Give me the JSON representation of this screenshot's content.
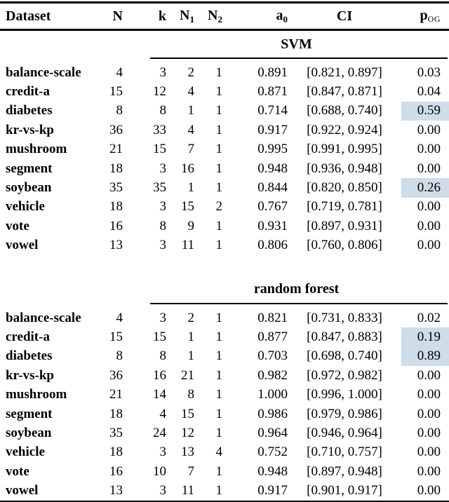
{
  "colors": {
    "highlight": "#cfdce9",
    "text": "#000000",
    "background": "#ffffff",
    "rule": "#000000"
  },
  "table": {
    "columns": [
      {
        "main": "Dataset",
        "sub": ""
      },
      {
        "main": "N",
        "sub": ""
      },
      {
        "main": "k",
        "sub": ""
      },
      {
        "main": "N",
        "sub": "1"
      },
      {
        "main": "N",
        "sub": "2"
      },
      {
        "main": "a",
        "sub": "0"
      },
      {
        "main": "CI",
        "sub": ""
      },
      {
        "main": "p",
        "sub": "OG"
      }
    ],
    "sections": [
      {
        "title": "SVM",
        "rows": [
          {
            "dataset": "balance-scale",
            "N": "4",
            "k": "3",
            "N1": "2",
            "N2": "1",
            "a0": "0.891",
            "CI": "[0.821, 0.897]",
            "pOG": "0.03",
            "highlight_pog": false
          },
          {
            "dataset": "credit-a",
            "N": "15",
            "k": "12",
            "N1": "4",
            "N2": "1",
            "a0": "0.871",
            "CI": "[0.847, 0.871]",
            "pOG": "0.04",
            "highlight_pog": false
          },
          {
            "dataset": "diabetes",
            "N": "8",
            "k": "8",
            "N1": "1",
            "N2": "1",
            "a0": "0.714",
            "CI": "[0.688, 0.740]",
            "pOG": "0.59",
            "highlight_pog": true
          },
          {
            "dataset": "kr-vs-kp",
            "N": "36",
            "k": "33",
            "N1": "4",
            "N2": "1",
            "a0": "0.917",
            "CI": "[0.922, 0.924]",
            "pOG": "0.00",
            "highlight_pog": false
          },
          {
            "dataset": "mushroom",
            "N": "21",
            "k": "15",
            "N1": "7",
            "N2": "1",
            "a0": "0.995",
            "CI": "[0.991, 0.995]",
            "pOG": "0.00",
            "highlight_pog": false
          },
          {
            "dataset": "segment",
            "N": "18",
            "k": "3",
            "N1": "16",
            "N2": "1",
            "a0": "0.948",
            "CI": "[0.936, 0.948]",
            "pOG": "0.00",
            "highlight_pog": false
          },
          {
            "dataset": "soybean",
            "N": "35",
            "k": "35",
            "N1": "1",
            "N2": "1",
            "a0": "0.844",
            "CI": "[0.820, 0.850]",
            "pOG": "0.26",
            "highlight_pog": true
          },
          {
            "dataset": "vehicle",
            "N": "18",
            "k": "3",
            "N1": "15",
            "N2": "2",
            "a0": "0.767",
            "CI": "[0.719, 0.781]",
            "pOG": "0.00",
            "highlight_pog": false
          },
          {
            "dataset": "vote",
            "N": "16",
            "k": "8",
            "N1": "9",
            "N2": "1",
            "a0": "0.931",
            "CI": "[0.897, 0.931]",
            "pOG": "0.00",
            "highlight_pog": false
          },
          {
            "dataset": "vowel",
            "N": "13",
            "k": "3",
            "N1": "11",
            "N2": "1",
            "a0": "0.806",
            "CI": "[0.760, 0.806]",
            "pOG": "0.00",
            "highlight_pog": false
          }
        ]
      },
      {
        "title": "random forest",
        "rows": [
          {
            "dataset": "balance-scale",
            "N": "4",
            "k": "3",
            "N1": "2",
            "N2": "1",
            "a0": "0.821",
            "CI": "[0.731, 0.833]",
            "pOG": "0.02",
            "highlight_pog": false
          },
          {
            "dataset": "credit-a",
            "N": "15",
            "k": "15",
            "N1": "1",
            "N2": "1",
            "a0": "0.877",
            "CI": "[0.847, 0.883]",
            "pOG": "0.19",
            "highlight_pog": true
          },
          {
            "dataset": "diabetes",
            "N": "8",
            "k": "8",
            "N1": "1",
            "N2": "1",
            "a0": "0.703",
            "CI": "[0.698, 0.740]",
            "pOG": "0.89",
            "highlight_pog": true
          },
          {
            "dataset": "kr-vs-kp",
            "N": "36",
            "k": "16",
            "N1": "21",
            "N2": "1",
            "a0": "0.982",
            "CI": "[0.972, 0.982]",
            "pOG": "0.00",
            "highlight_pog": false
          },
          {
            "dataset": "mushroom",
            "N": "21",
            "k": "14",
            "N1": "8",
            "N2": "1",
            "a0": "1.000",
            "CI": "[0.996, 1.000]",
            "pOG": "0.00",
            "highlight_pog": false
          },
          {
            "dataset": "segment",
            "N": "18",
            "k": "4",
            "N1": "15",
            "N2": "1",
            "a0": "0.986",
            "CI": "[0.979, 0.986]",
            "pOG": "0.00",
            "highlight_pog": false
          },
          {
            "dataset": "soybean",
            "N": "35",
            "k": "24",
            "N1": "12",
            "N2": "1",
            "a0": "0.964",
            "CI": "[0.946, 0.964]",
            "pOG": "0.00",
            "highlight_pog": false
          },
          {
            "dataset": "vehicle",
            "N": "18",
            "k": "3",
            "N1": "13",
            "N2": "4",
            "a0": "0.752",
            "CI": "[0.710, 0.757]",
            "pOG": "0.00",
            "highlight_pog": false
          },
          {
            "dataset": "vote",
            "N": "16",
            "k": "10",
            "N1": "7",
            "N2": "1",
            "a0": "0.948",
            "CI": "[0.897, 0.948]",
            "pOG": "0.00",
            "highlight_pog": false
          },
          {
            "dataset": "vowel",
            "N": "13",
            "k": "3",
            "N1": "11",
            "N2": "1",
            "a0": "0.917",
            "CI": "[0.901, 0.917]",
            "pOG": "0.00",
            "highlight_pog": false
          }
        ]
      }
    ]
  }
}
